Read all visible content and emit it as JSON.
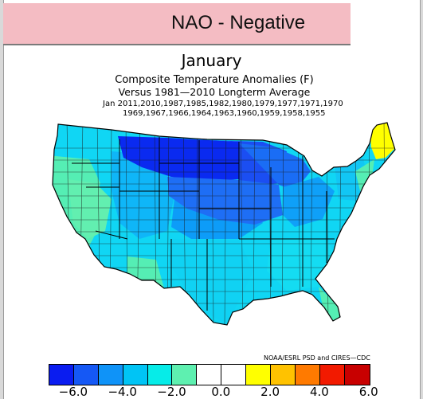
{
  "banner": {
    "title": "NAO - Negative"
  },
  "header": {
    "month": "January",
    "subtitle_line1": "Composite Temperature Anomalies (F)",
    "subtitle_line2": "Versus 1981—2010 Longterm Average",
    "years_line1": "Jan  2011,2010,1987,1985,1982,1980,1979,1977,1971,1970",
    "years_line2": "1969,1967,1966,1964,1963,1960,1959,1958,1955"
  },
  "credit": "NOAA/ESRL PSD and CIRES—CDC",
  "legend": {
    "colors": [
      "#0a1cf0",
      "#1558f5",
      "#0f93f8",
      "#00c4f5",
      "#06ece8",
      "#5ef0b0",
      "#ffffff",
      "#ffffff",
      "#ffff00",
      "#ffc200",
      "#ff7a00",
      "#f21a00",
      "#c80000"
    ],
    "ticks": [
      "−6.0",
      "−4.0",
      "−2.0",
      "0.0",
      "2.0",
      "4.0",
      "6.0"
    ]
  },
  "map": {
    "region": "Contiguous United States climate divisions",
    "dominant_anomaly_colors": {
      "northern_plains": "#1b3cf0",
      "central_plains": "#1e6ef5",
      "interior": "#0fa6f8",
      "south_and_east": "#10d6f4",
      "west_coast_and_southwest": "#55eeb4",
      "new_england_north": "#ffff00"
    }
  }
}
